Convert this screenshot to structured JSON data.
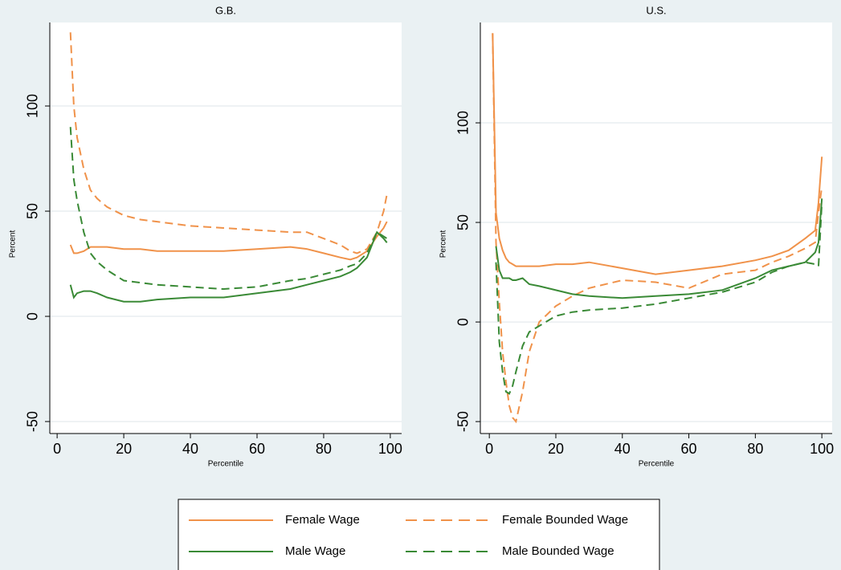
{
  "chart_data": [
    {
      "type": "line",
      "title": "G.B.",
      "xlabel": "Percentile",
      "ylabel": "Percent",
      "x": [
        4,
        5,
        6,
        8,
        10,
        12,
        15,
        20,
        25,
        30,
        40,
        50,
        60,
        70,
        75,
        80,
        85,
        88,
        90,
        93,
        96,
        98,
        99
      ],
      "series": [
        {
          "name": "Female Wage",
          "color": "#f0924a",
          "dash": false,
          "values": [
            34,
            30,
            30,
            31,
            33,
            33,
            33,
            32,
            32,
            31,
            31,
            31,
            32,
            33,
            32,
            30,
            28,
            27,
            28,
            31,
            38,
            42,
            45
          ]
        },
        {
          "name": "Female Bounded Wage",
          "color": "#f0924a",
          "dash": true,
          "values": [
            135,
            100,
            85,
            70,
            60,
            56,
            52,
            48,
            46,
            45,
            43,
            42,
            41,
            40,
            40,
            37,
            34,
            31,
            30,
            32,
            40,
            50,
            58
          ]
        },
        {
          "name": "Male Wage",
          "color": "#3a8a36",
          "dash": false,
          "values": [
            15,
            9,
            11,
            12,
            12,
            11,
            9,
            7,
            7,
            8,
            9,
            9,
            11,
            13,
            15,
            17,
            19,
            21,
            23,
            28,
            40,
            37,
            35
          ]
        },
        {
          "name": "Male Bounded Wage",
          "color": "#3a8a36",
          "dash": true,
          "values": [
            90,
            65,
            55,
            40,
            30,
            26,
            22,
            17,
            16,
            15,
            14,
            13,
            14,
            17,
            18,
            20,
            22,
            24,
            25,
            30,
            40,
            38,
            37
          ]
        }
      ],
      "xlim": [
        -2.2,
        103.4
      ],
      "ylim": [
        -55.7,
        139.7
      ],
      "xticks": [
        0,
        20,
        40,
        60,
        80,
        100
      ],
      "yticks": [
        -50,
        0,
        50,
        100
      ],
      "grid": true
    },
    {
      "type": "line",
      "title": "U.S.",
      "xlabel": "Percentile",
      "ylabel": "Percent",
      "x": [
        1,
        2,
        3,
        4,
        5,
        6,
        7,
        8,
        10,
        12,
        15,
        20,
        25,
        30,
        40,
        50,
        60,
        70,
        80,
        85,
        90,
        95,
        98,
        99,
        100
      ],
      "series": [
        {
          "name": "Female Wage",
          "color": "#f0924a",
          "dash": false,
          "values": [
            145,
            55,
            42,
            36,
            32,
            30,
            29,
            28,
            28,
            28,
            28,
            29,
            29,
            30,
            27,
            24,
            26,
            28,
            31,
            33,
            36,
            42,
            46,
            60,
            83
          ]
        },
        {
          "name": "Female Bounded Wage",
          "color": "#f0924a",
          "dash": true,
          "values": [
            145,
            40,
            10,
            -15,
            -30,
            -42,
            -48,
            -50,
            -35,
            -15,
            0,
            8,
            13,
            17,
            21,
            20,
            17,
            24,
            26,
            30,
            33,
            37,
            40,
            55,
            68
          ]
        },
        {
          "name": "Male Wage",
          "color": "#3a8a36",
          "dash": false,
          "values": [
            null,
            38,
            26,
            22,
            22,
            22,
            21,
            21,
            22,
            19,
            18,
            16,
            14,
            13,
            12,
            13,
            14,
            16,
            22,
            26,
            28,
            30,
            35,
            40,
            62
          ]
        },
        {
          "name": "Male Bounded Wage",
          "color": "#3a8a36",
          "dash": true,
          "values": [
            null,
            30,
            -10,
            -25,
            -35,
            -36,
            -32,
            -25,
            -12,
            -5,
            -2,
            3,
            5,
            6,
            7,
            9,
            12,
            15,
            20,
            25,
            28,
            30,
            29,
            28,
            60
          ]
        }
      ],
      "xlim": [
        -2.7,
        103.1
      ],
      "ylim": [
        -56,
        150.4
      ],
      "xticks": [
        0,
        20,
        40,
        60,
        80,
        100
      ],
      "yticks": [
        -50,
        0,
        50,
        100
      ],
      "grid": true
    }
  ]
}
